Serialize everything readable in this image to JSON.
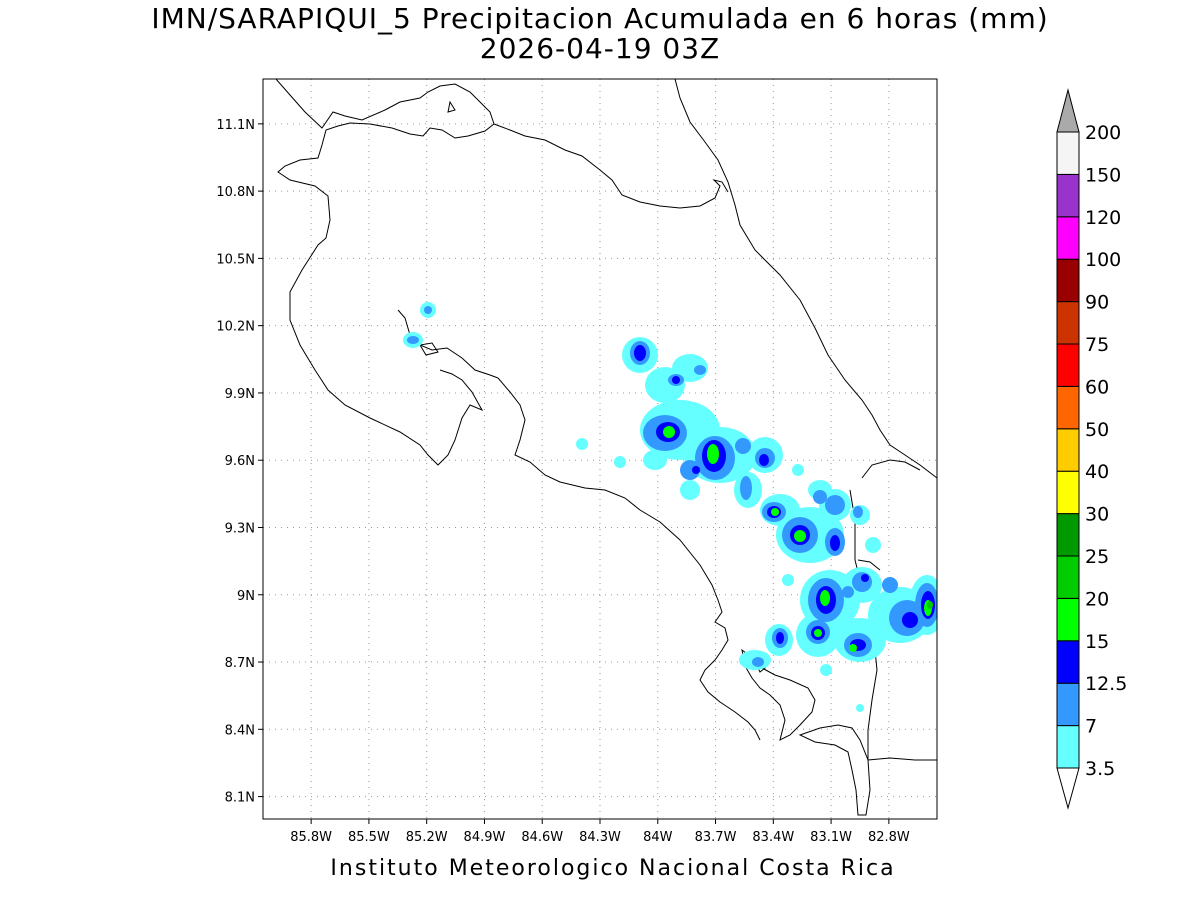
{
  "title": "IMN/SARAPIQUI_5 Precipitacion Acumulada en 6 horas (mm)",
  "subtitle": "2026-04-19 03Z",
  "footer": "Instituto Meteorologico Nacional Costa Rica",
  "map": {
    "lon_range": [
      -86.05,
      -82.55
    ],
    "lat_range": [
      8.0,
      11.3
    ],
    "lon_ticks": [
      "85.8W",
      "85.5W",
      "85.2W",
      "84.9W",
      "84.6W",
      "84.3W",
      "84W",
      "83.7W",
      "83.4W",
      "83.1W",
      "82.8W"
    ],
    "lat_ticks": [
      "8.1N",
      "8.4N",
      "8.7N",
      "9N",
      "9.3N",
      "9.6N",
      "9.9N",
      "10.2N",
      "10.5N",
      "10.8N",
      "11.1N"
    ],
    "grid": "dotted"
  },
  "colorbar": {
    "labels": [
      "3.5",
      "7",
      "12.5",
      "15",
      "20",
      "25",
      "30",
      "40",
      "50",
      "60",
      "75",
      "90",
      "100",
      "120",
      "150",
      "200"
    ],
    "colors": [
      "#66ffff",
      "#3399ff",
      "#0000ff",
      "#00ff00",
      "#00cc00",
      "#009900",
      "#ffff00",
      "#ffcc00",
      "#ff6600",
      "#ff0000",
      "#cc3300",
      "#990000",
      "#ff00ff",
      "#9933cc",
      "#f5f5f5",
      "#aaaaaa"
    ]
  }
}
